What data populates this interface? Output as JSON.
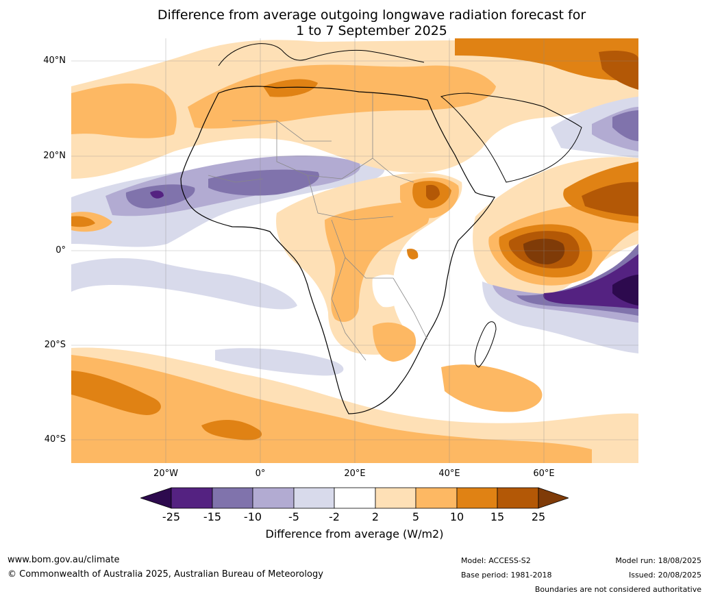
{
  "title": {
    "line1": "Difference from average outgoing longwave radiation forecast for",
    "line2": "1 to 7 September 2025"
  },
  "map": {
    "lat_labels": [
      "40°N",
      "20°N",
      "0°",
      "20°S",
      "40°S"
    ],
    "lon_labels": [
      "20°W",
      "0°",
      "20°E",
      "40°E",
      "60°E"
    ],
    "lat_range": [
      -45,
      45
    ],
    "lon_range": [
      -40,
      80
    ],
    "grid": true
  },
  "colorbar": {
    "ticks": [
      "-25",
      "-15",
      "-10",
      "-5",
      "-2",
      "2",
      "5",
      "10",
      "15",
      "25"
    ],
    "label": "Difference from average (W/m2)",
    "colors": {
      "below": "#2d0a4e",
      "-25_-15": "#542281",
      "-15_-10": "#8073ac",
      "-10_-5": "#b2abd2",
      "-5_-2": "#d8daeb",
      "-2_2": "#ffffff",
      "2_5": "#fee0b6",
      "5_10": "#fdb863",
      "10_15": "#e08214",
      "15_25": "#b35806",
      "above": "#7f3b08"
    }
  },
  "footer": {
    "url": "www.bom.gov.au/climate",
    "copyright": "© Commonwealth of Australia 2025, Australian Bureau of Meteorology",
    "model": "Model: ACCESS-S2",
    "base_period": "Base period: 1981-2018",
    "model_run": "Model run: 18/08/2025",
    "issued": "Issued: 20/08/2025",
    "disclaimer": "Boundaries are not considered authoritative"
  }
}
